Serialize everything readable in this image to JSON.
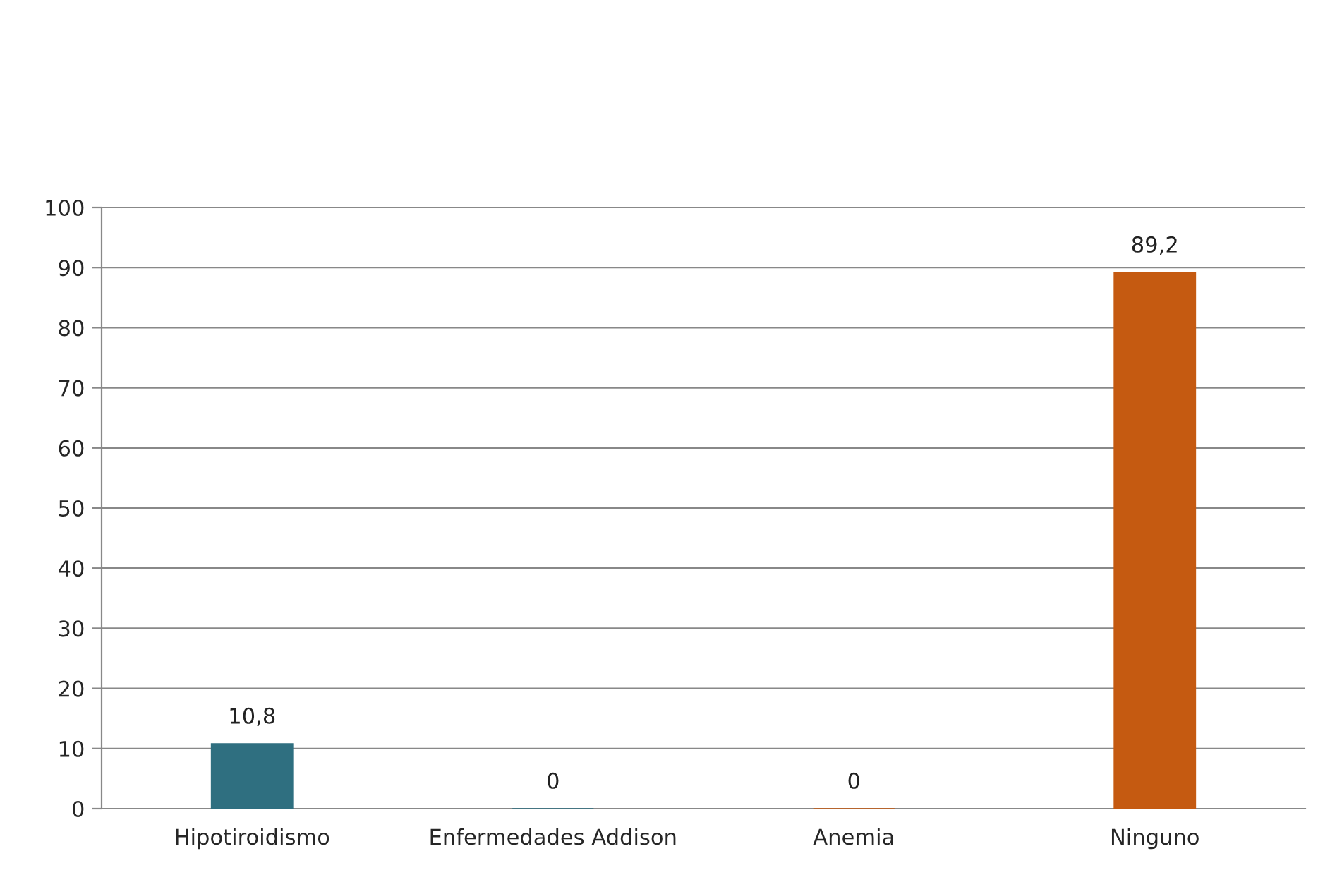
{
  "chart_data": {
    "type": "bar",
    "categories": [
      "Hipotiroidismo",
      "Enfermedades Addison",
      "Anemia",
      "Ninguno"
    ],
    "values": [
      10.8,
      0,
      0,
      89.2
    ],
    "value_labels": [
      "10,8",
      "0",
      "0",
      "89,2"
    ],
    "colors": [
      "#2f6f80",
      "#2f6f80",
      "#c55a11",
      "#c55a11"
    ],
    "ylim": [
      0,
      100
    ],
    "yticks": [
      0,
      10,
      20,
      30,
      40,
      50,
      60,
      70,
      80,
      90,
      100
    ],
    "grid": "y",
    "legend": false
  }
}
